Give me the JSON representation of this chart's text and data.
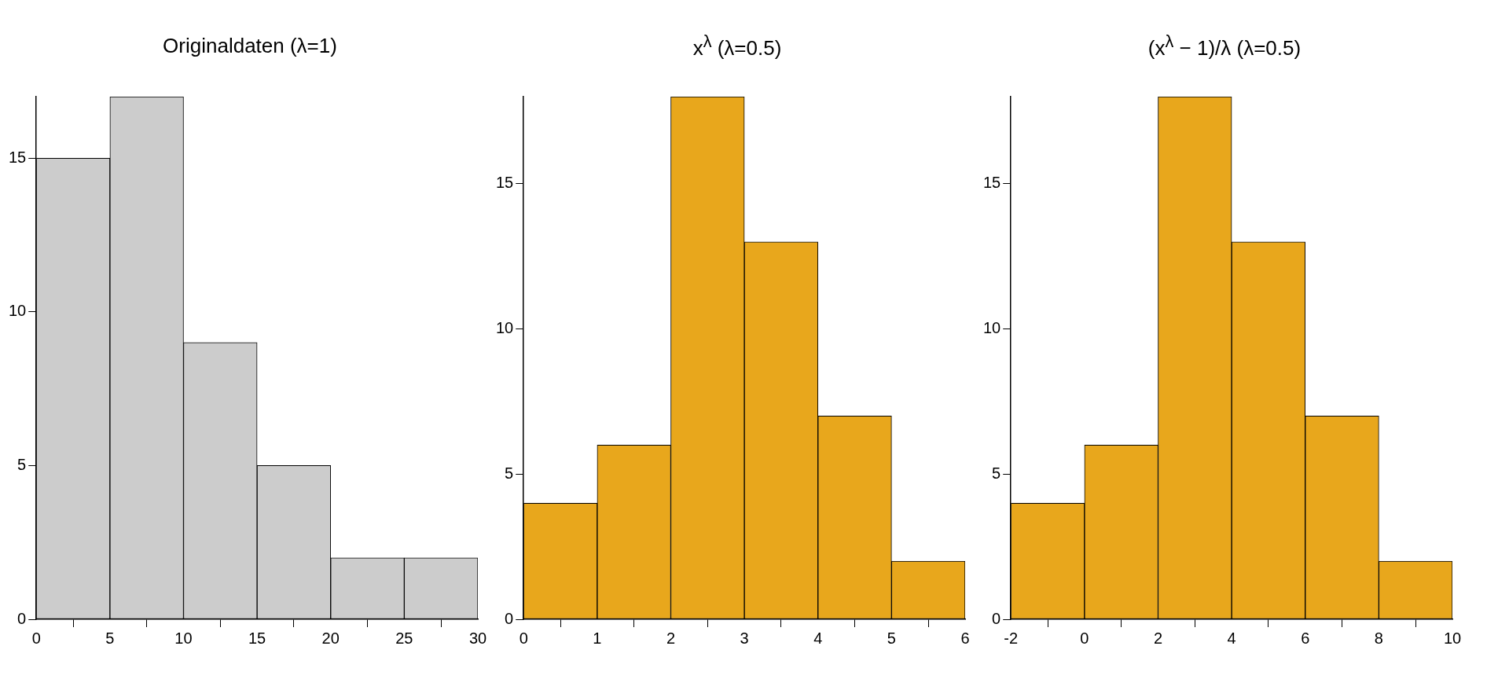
{
  "chart_data": [
    {
      "type": "histogram",
      "title": "Originaldaten (λ=1)",
      "bins": [
        0,
        5,
        10,
        15,
        20,
        25,
        30
      ],
      "values": [
        15,
        17,
        9,
        5,
        2,
        2
      ],
      "color": "#cccccc",
      "xlim": [
        0,
        30
      ],
      "xticks": [
        0,
        5,
        10,
        15,
        20,
        25,
        30
      ],
      "ylim": [
        0,
        17
      ],
      "yticks": [
        0,
        5,
        10,
        15
      ]
    },
    {
      "type": "histogram",
      "title": "x$^{λ}$ (λ=0.5)",
      "bins": [
        0,
        1,
        2,
        3,
        4,
        5,
        6
      ],
      "values": [
        4,
        6,
        18,
        13,
        7,
        2
      ],
      "color": "#e8a71c",
      "xlim": [
        0,
        6
      ],
      "xticks": [
        0,
        1,
        2,
        3,
        4,
        5,
        6
      ],
      "ylim": [
        0,
        18
      ],
      "yticks": [
        0,
        5,
        10,
        15
      ]
    },
    {
      "type": "histogram",
      "title": "(x$^{λ}$ − 1)/λ (λ=0.5)",
      "bins": [
        -2,
        0,
        2,
        4,
        6,
        8,
        10
      ],
      "values": [
        4,
        6,
        18,
        13,
        7,
        2
      ],
      "color": "#e8a71c",
      "xlim": [
        -2,
        10
      ],
      "xticks": [
        -2,
        0,
        2,
        4,
        6,
        8,
        10
      ],
      "ylim": [
        0,
        18
      ],
      "yticks": [
        0,
        5,
        10,
        15
      ]
    }
  ]
}
